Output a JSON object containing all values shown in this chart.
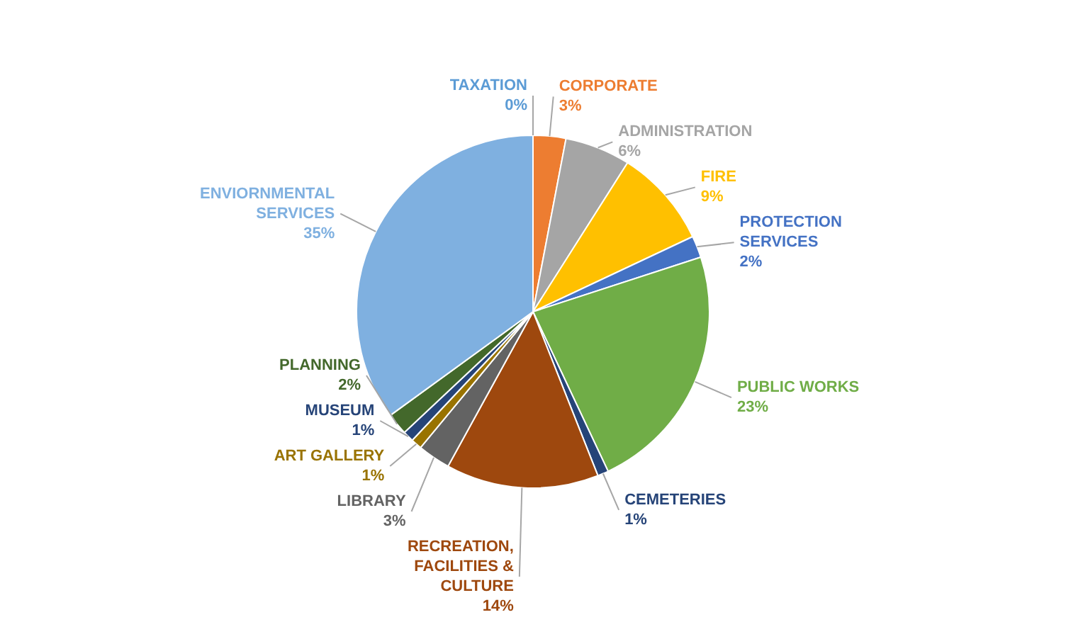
{
  "chart_data": {
    "type": "pie",
    "categories": [
      "TAXATION",
      "CORPORATE",
      "ADMINISTRATION",
      "FIRE",
      "PROTECTION SERVICES",
      "PUBLIC WORKS",
      "CEMETERIES",
      "RECREATION, FACILITIES & CULTURE",
      "LIBRARY",
      "ART GALLERY",
      "MUSEUM",
      "PLANNING",
      "ENVIORNMENTAL SERVICES"
    ],
    "values": [
      0,
      3,
      6,
      9,
      2,
      23,
      1,
      14,
      3,
      1,
      1,
      2,
      35
    ],
    "colors": [
      "#5b9bd5",
      "#ed7d31",
      "#a5a5a5",
      "#ffc000",
      "#4472c4",
      "#70ad47",
      "#264478",
      "#9e480e",
      "#636363",
      "#997300",
      "#264478",
      "#43682b",
      "#7fb0e0"
    ],
    "value_labels": [
      "0%",
      "3%",
      "6%",
      "9%",
      "2%",
      "23%",
      "1%",
      "14%",
      "3%",
      "1%",
      "1%",
      "2%",
      "35%"
    ],
    "legend": false
  }
}
